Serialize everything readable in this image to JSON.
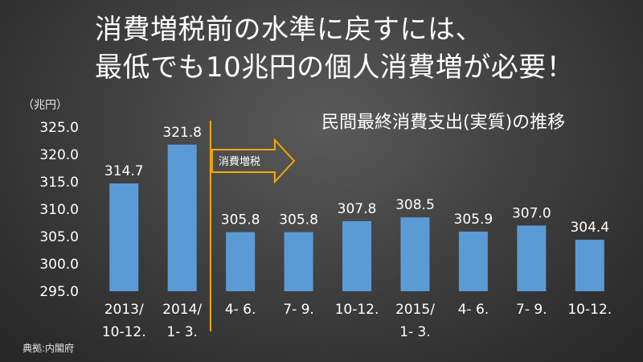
{
  "headline": {
    "line1": "消費増税前の水準に戻すには、",
    "line2": "最低でも10兆円の個人消費増が必要！"
  },
  "unit_label": "（兆円）",
  "source_label": "典拠:内閣府",
  "chart_data": {
    "type": "bar",
    "title": "民間最終消費支出(実質)の推移",
    "xlabel": "",
    "ylabel": "（兆円）",
    "ylim": [
      295.0,
      325.0
    ],
    "yticks": [
      "325.0",
      "320.0",
      "315.0",
      "310.0",
      "305.0",
      "300.0",
      "295.0"
    ],
    "categories": [
      [
        "2013/",
        "10-12."
      ],
      [
        "2014/",
        "1- 3."
      ],
      [
        "4- 6."
      ],
      [
        "7- 9."
      ],
      [
        "10-12."
      ],
      [
        "2015/",
        "1- 3."
      ],
      [
        "4- 6."
      ],
      [
        "7- 9."
      ],
      [
        "10-12."
      ]
    ],
    "values": [
      314.7,
      321.8,
      305.8,
      305.8,
      307.8,
      308.5,
      305.9,
      307.0,
      304.4
    ],
    "value_labels": [
      "314.7",
      "321.8",
      "305.8",
      "305.8",
      "307.8",
      "308.5",
      "305.9",
      "307.0",
      "304.4"
    ],
    "grid": false,
    "bar_color": "#5b9bd5",
    "annotation": {
      "text": "消費増税",
      "after_category_index": 1,
      "line_color": "#f5a800",
      "arrow_color": "#f5a800"
    }
  }
}
